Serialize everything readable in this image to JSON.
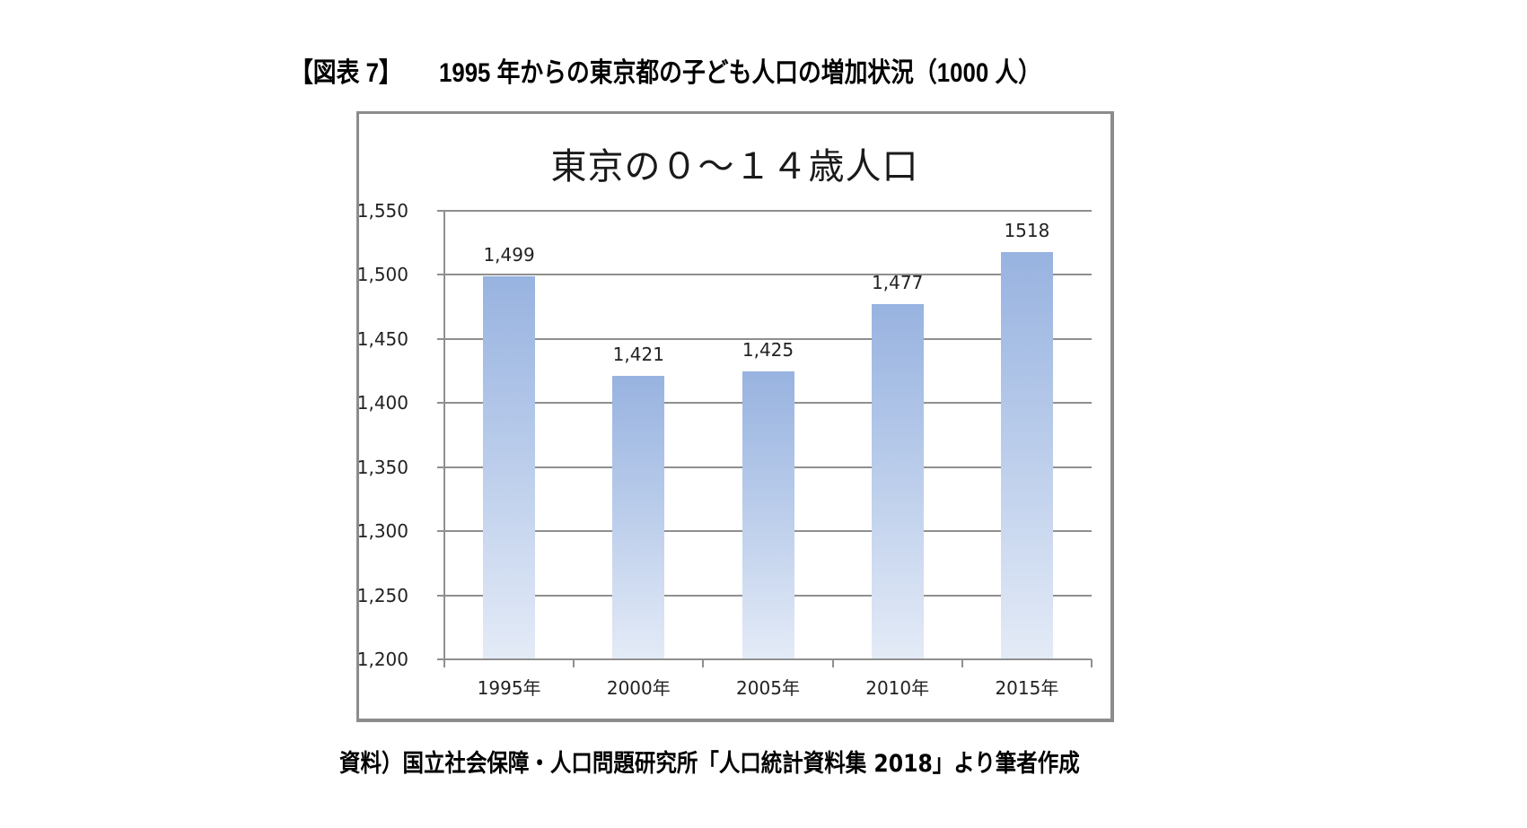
{
  "figure": {
    "tag": "【図表 7】",
    "title": "1995 年からの東京都の子ども人口の増加状況（1000 人）",
    "source": "資料）国立社会保障・人口問題研究所「人口統計資料集 2018」より筆者作成"
  },
  "chart_data": {
    "type": "bar",
    "title": "東京の０～１４歳人口",
    "xlabel": "",
    "ylabel": "",
    "categories": [
      "1995年",
      "2000年",
      "2005年",
      "2010年",
      "2015年"
    ],
    "values": [
      1499,
      1421,
      1425,
      1477,
      1518
    ],
    "data_labels": [
      "1,499",
      "1,421",
      "1,425",
      "1,477",
      "1518"
    ],
    "ylim": [
      1200,
      1550
    ],
    "yticks": [
      1200,
      1250,
      1300,
      1350,
      1400,
      1450,
      1500,
      1550
    ],
    "ytick_labels": [
      "1,200",
      "1,250",
      "1,300",
      "1,350",
      "1,400",
      "1,450",
      "1,500",
      "1,550"
    ],
    "grid": true,
    "legend": null,
    "bar_color_top": "#98b3e0",
    "bar_color_bottom": "#e4ebf7",
    "unit": "1000 人"
  }
}
